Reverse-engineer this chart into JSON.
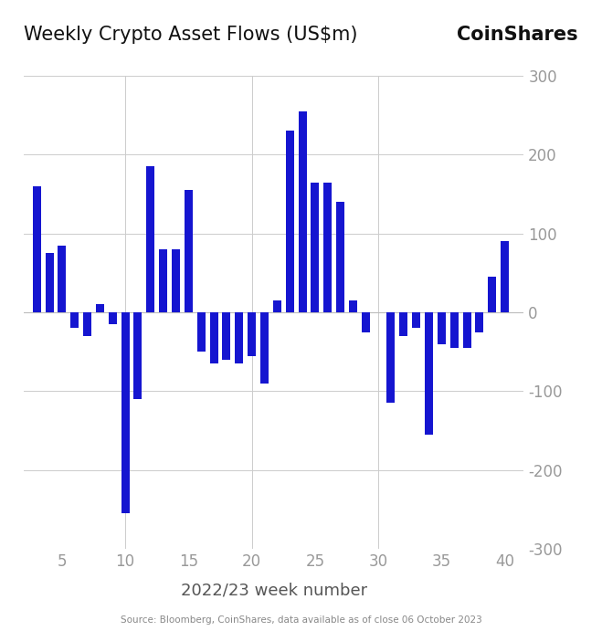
{
  "title_left": "Weekly Crypto Asset Flows (US$m)",
  "title_right": "CoinShares",
  "xlabel": "2022/23 week number",
  "source": "Source: Bloomberg, CoinShares, data available as of close 06 October 2023",
  "bar_color": "#1515d0",
  "background_color": "#ffffff",
  "ylim": [
    -300,
    300
  ],
  "xlim": [
    2.0,
    41.5
  ],
  "xticks": [
    5,
    10,
    15,
    20,
    25,
    30,
    35,
    40
  ],
  "yticks": [
    -300,
    -200,
    -100,
    0,
    100,
    200,
    300
  ],
  "weeks": [
    3,
    4,
    5,
    6,
    7,
    8,
    9,
    10,
    11,
    12,
    13,
    14,
    15,
    16,
    17,
    18,
    19,
    20,
    21,
    22,
    23,
    24,
    25,
    26,
    27,
    28,
    29,
    31,
    32,
    33,
    34,
    35,
    36,
    37,
    38,
    39,
    40
  ],
  "values": [
    160,
    75,
    85,
    -20,
    -30,
    10,
    -15,
    -255,
    -110,
    185,
    80,
    80,
    155,
    -50,
    -65,
    -60,
    -65,
    -55,
    -90,
    15,
    230,
    255,
    165,
    165,
    140,
    15,
    -25,
    -115,
    -30,
    -20,
    -155,
    -40,
    -45,
    -45,
    -25,
    45,
    90
  ]
}
